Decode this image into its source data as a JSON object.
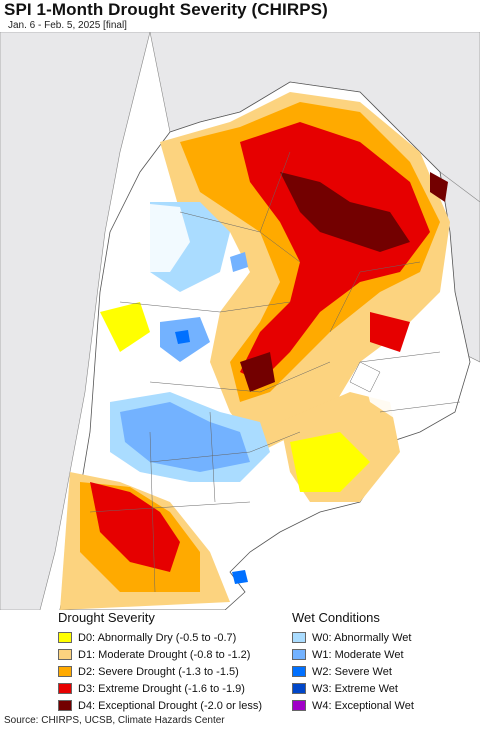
{
  "title": "SPI 1-Month Drought Severity (CHIRPS)",
  "subtitle": "Jan. 6 - Feb. 5, 2025 [final]",
  "legend_drought": {
    "heading": "Drought Severity",
    "items": [
      {
        "label": "D0: Abnormally Dry (-0.5 to -0.7)",
        "color": "#ffff00"
      },
      {
        "label": "D1: Moderate Drought (-0.8 to -1.2)",
        "color": "#fcd37f"
      },
      {
        "label": "D2: Severe Drought (-1.3 to -1.5)",
        "color": "#ffaa00"
      },
      {
        "label": "D3: Extreme Drought (-1.6 to -1.9)",
        "color": "#e60000"
      },
      {
        "label": "D4: Exceptional Drought (-2.0 or less)",
        "color": "#730000"
      }
    ]
  },
  "legend_wet": {
    "heading": "Wet Conditions",
    "items": [
      {
        "label": "W0: Abnormally Wet",
        "color": "#aadcff"
      },
      {
        "label": "W1: Moderate Wet",
        "color": "#73b2ff"
      },
      {
        "label": "W2: Severe Wet",
        "color": "#0070ff"
      },
      {
        "label": "W3: Extreme Wet",
        "color": "#0046c8"
      },
      {
        "label": "W4: Exceptional Wet",
        "color": "#a000c8"
      }
    ]
  },
  "source": "Source: CHIRPS, UCSB, Climate Hazards Center"
}
